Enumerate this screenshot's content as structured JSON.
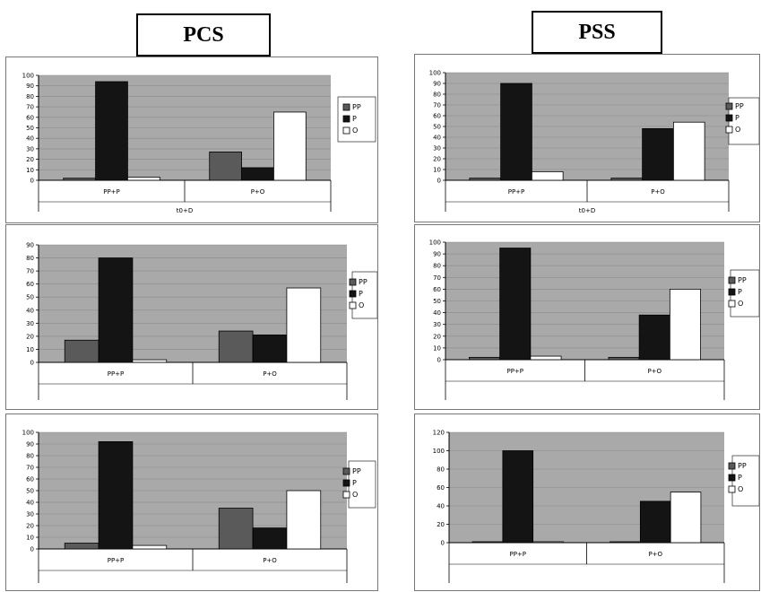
{
  "headers": {
    "left": "PCS",
    "right": "PSS"
  },
  "chart_data": [
    {
      "type": "bar",
      "categories": [
        "PP+P",
        "P+O"
      ],
      "xlabel": "t0+D",
      "ylim": [
        0,
        100
      ],
      "series": [
        {
          "name": "PP",
          "values": [
            2,
            27
          ]
        },
        {
          "name": "P",
          "values": [
            94,
            12
          ]
        },
        {
          "name": "O",
          "values": [
            3,
            65
          ]
        }
      ]
    },
    {
      "type": "bar",
      "categories": [
        "PP+P",
        "P+O"
      ],
      "xlabel": "t0+D",
      "ylim": [
        0,
        100
      ],
      "series": [
        {
          "name": "PP",
          "values": [
            2,
            2
          ]
        },
        {
          "name": "P",
          "values": [
            90,
            48
          ]
        },
        {
          "name": "O",
          "values": [
            8,
            54
          ]
        }
      ]
    },
    {
      "type": "bar",
      "categories": [
        "PP+P",
        "P+O"
      ],
      "xlabel": "",
      "ylim": [
        0,
        90
      ],
      "series": [
        {
          "name": "PP",
          "values": [
            17,
            24
          ]
        },
        {
          "name": "P",
          "values": [
            80,
            21
          ]
        },
        {
          "name": "O",
          "values": [
            2,
            57
          ]
        }
      ]
    },
    {
      "type": "bar",
      "categories": [
        "PP+P",
        "P+O"
      ],
      "xlabel": "",
      "ylim": [
        0,
        100
      ],
      "series": [
        {
          "name": "PP",
          "values": [
            2,
            2
          ]
        },
        {
          "name": "P",
          "values": [
            95,
            38
          ]
        },
        {
          "name": "O",
          "values": [
            3,
            60
          ]
        }
      ]
    },
    {
      "type": "bar",
      "categories": [
        "PP+P",
        "P+O"
      ],
      "xlabel": "",
      "ylim": [
        0,
        100
      ],
      "series": [
        {
          "name": "PP",
          "values": [
            5,
            35
          ]
        },
        {
          "name": "P",
          "values": [
            92,
            18
          ]
        },
        {
          "name": "O",
          "values": [
            3,
            50
          ]
        }
      ]
    },
    {
      "type": "bar",
      "categories": [
        "PP+P",
        "P+O"
      ],
      "xlabel": "",
      "ylim": [
        0,
        120
      ],
      "series": [
        {
          "name": "PP",
          "values": [
            1,
            1
          ]
        },
        {
          "name": "P",
          "values": [
            100,
            45
          ]
        },
        {
          "name": "O",
          "values": [
            1,
            55
          ]
        }
      ]
    }
  ],
  "colors": {
    "PP": "#5a5a5a",
    "P": "#141414",
    "O": "#ffffff",
    "plot_bg": "#a9a9a9"
  }
}
